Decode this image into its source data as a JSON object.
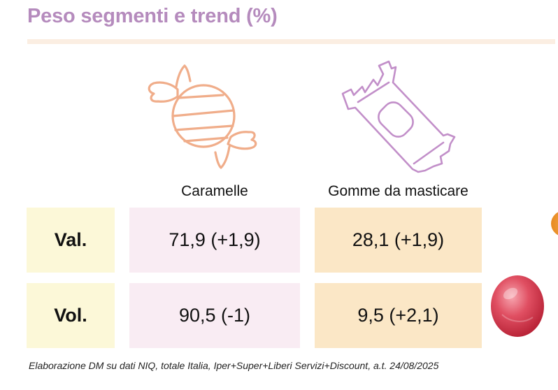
{
  "title": "Peso segmenti e trend (%)",
  "colors": {
    "title": "#b58bbd",
    "rule": "#fbeee2",
    "label_bg": "#fcf8d8",
    "caramelle_bg": "#f9ecf3",
    "gomme_bg": "#fbe7c6",
    "caramelle_icon": "#f0ad8a",
    "gomme_icon": "#c28fc9"
  },
  "icons": {
    "caramelle": "wrapped-candy-icon",
    "gomme": "gum-pack-icon",
    "decoration": "red-hard-candy-image"
  },
  "chart_data": {
    "type": "table",
    "columns": [
      "Caramelle",
      "Gomme da masticare"
    ],
    "rows": [
      {
        "label": "Val.",
        "cells": [
          "71,9 (+1,9)",
          "28,1 (+1,9)"
        ],
        "values": [
          71.9,
          28.1
        ],
        "trends": [
          1.9,
          1.9
        ]
      },
      {
        "label": "Vol.",
        "cells": [
          "90,5 (-1)",
          "9,5 (+2,1)"
        ],
        "values": [
          90.5,
          9.5
        ],
        "trends": [
          -1,
          2.1
        ]
      }
    ]
  },
  "source": "Elaborazione DM su dati NIQ, totale Italia, Iper+Super+Liberi Servizi+Discount, a.t. 24/08/2025"
}
